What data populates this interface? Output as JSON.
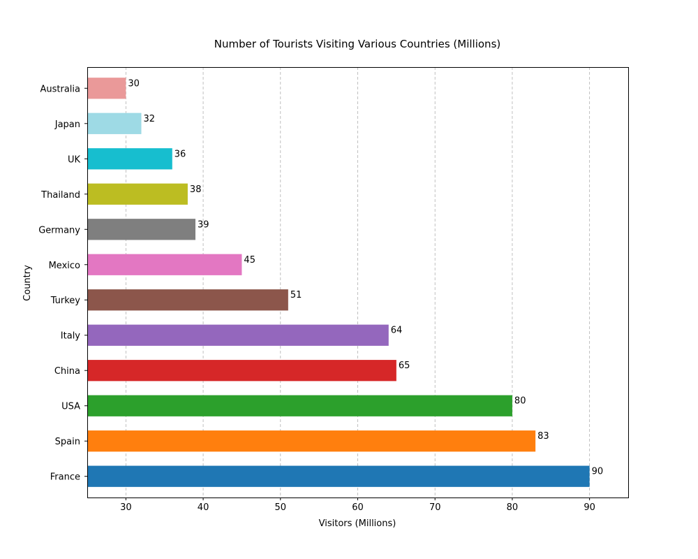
{
  "chart_data": {
    "type": "bar",
    "orientation": "horizontal",
    "title": "Number of Tourists Visiting Various Countries (Millions)",
    "xlabel": "Visitors (Millions)",
    "ylabel": "Country",
    "categories": [
      "France",
      "Spain",
      "USA",
      "China",
      "Italy",
      "Turkey",
      "Mexico",
      "Germany",
      "Thailand",
      "UK",
      "Japan",
      "Australia"
    ],
    "values": [
      90,
      83,
      80,
      65,
      64,
      51,
      45,
      39,
      38,
      36,
      32,
      30
    ],
    "colors": [
      "#1f77b4",
      "#ff7f0e",
      "#2ca02c",
      "#d62728",
      "#9467bd",
      "#8c564b",
      "#e377c2",
      "#7f7f7f",
      "#bcbd22",
      "#17becf",
      "#9edae5",
      "#ea9999"
    ],
    "xlim": [
      25,
      95
    ],
    "xticks": [
      30,
      40,
      50,
      60,
      70,
      80,
      90
    ],
    "grid": "x-axis dashed",
    "data_labels": true
  }
}
